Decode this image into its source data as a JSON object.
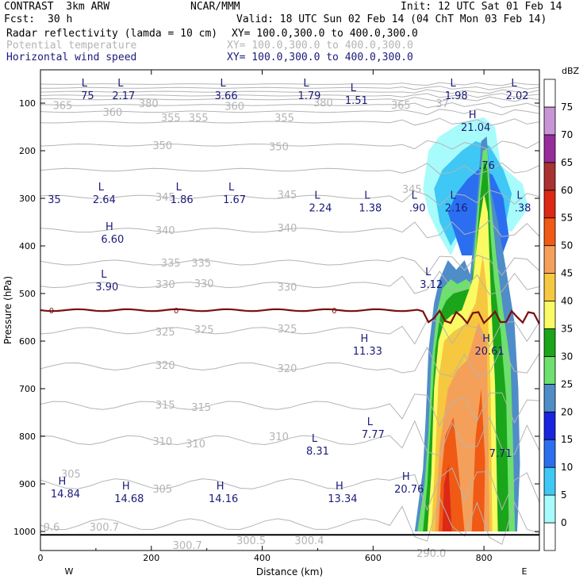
{
  "header": {
    "model": "CONTRAST  3km ARW",
    "org": "NCAR/MMM",
    "init": "Init: 12 UTC Sat 01 Feb 14",
    "fcst_label": "Fcst:",
    "fcst_value": "30 h",
    "valid": "Valid: 18 UTC Sun 02 Feb 14 (04 ChT Mon 03 Feb 14)",
    "fields": [
      {
        "name": "Radar reflectivity (lamda = 10 cm)",
        "xy": "XY= 100.0,300.0 to 400.0,300.0",
        "color": "#000000"
      },
      {
        "name": "Potential temperature",
        "xy": "XY= 100.0,300.0 to 400.0,300.0",
        "color": "#b4b4b4"
      },
      {
        "name": "Horizontal wind speed",
        "xy": "XY= 100.0,300.0 to 400.0,300.0",
        "color": "#1a1a7a"
      }
    ]
  },
  "chart_data": {
    "type": "cross-section",
    "xlabel": "Distance (km)",
    "ylabel": "Pressure (hPa)",
    "xlim": [
      0,
      900
    ],
    "ylim": [
      1040,
      30
    ],
    "x_ticks": [
      "0",
      "200",
      "400",
      "600",
      "800"
    ],
    "y_ticks": [
      "100",
      "200",
      "300",
      "400",
      "500",
      "600",
      "700",
      "800",
      "900",
      "1000"
    ],
    "west_label": "W",
    "east_label": "E",
    "colorbar": {
      "unit": "dBZ",
      "levels": [
        "0",
        "5",
        "10",
        "15",
        "20",
        "25",
        "30",
        "35",
        "40",
        "45",
        "50",
        "55",
        "60",
        "65",
        "70",
        "75"
      ],
      "colors": [
        "#ffffff",
        "#a8fbfb",
        "#3fc8f5",
        "#2b6ff0",
        "#1a23e0",
        "#4f8dc8",
        "#6de06d",
        "#1aa51a",
        "#fafa64",
        "#f5c83f",
        "#f5a05a",
        "#f05a14",
        "#dc2814",
        "#aa3232",
        "#962d9b",
        "#c896d7",
        "#ffffff"
      ]
    },
    "theta_labels": [
      {
        "value": "380",
        "x": 195,
        "p": 100
      },
      {
        "value": "380",
        "x": 510,
        "p": 98
      },
      {
        "value": "365",
        "x": 40,
        "p": 104
      },
      {
        "value": "360",
        "x": 130,
        "p": 118
      },
      {
        "value": "360",
        "x": 350,
        "p": 106
      },
      {
        "value": "365",
        "x": 650,
        "p": 103
      },
      {
        "value": "37",
        "x": 725,
        "p": 100
      },
      {
        "value": "355",
        "x": 235,
        "p": 130
      },
      {
        "value": "355",
        "x": 285,
        "p": 130
      },
      {
        "value": "355",
        "x": 440,
        "p": 130
      },
      {
        "value": "350",
        "x": 220,
        "p": 188
      },
      {
        "value": "350",
        "x": 430,
        "p": 191
      },
      {
        "value": "345",
        "x": 225,
        "p": 297
      },
      {
        "value": "345",
        "x": 445,
        "p": 292
      },
      {
        "value": "345",
        "x": 670,
        "p": 280
      },
      {
        "value": "340",
        "x": 225,
        "p": 367
      },
      {
        "value": "340",
        "x": 445,
        "p": 362
      },
      {
        "value": "335",
        "x": 235,
        "p": 435
      },
      {
        "value": "335",
        "x": 290,
        "p": 435
      },
      {
        "value": "330",
        "x": 225,
        "p": 480
      },
      {
        "value": "330",
        "x": 295,
        "p": 478
      },
      {
        "value": "330",
        "x": 445,
        "p": 486
      },
      {
        "value": "325",
        "x": 225,
        "p": 580
      },
      {
        "value": "325",
        "x": 295,
        "p": 575
      },
      {
        "value": "325",
        "x": 445,
        "p": 573
      },
      {
        "value": "320",
        "x": 225,
        "p": 650
      },
      {
        "value": "320",
        "x": 445,
        "p": 657
      },
      {
        "value": "315",
        "x": 225,
        "p": 733
      },
      {
        "value": "315",
        "x": 290,
        "p": 738
      },
      {
        "value": "310",
        "x": 220,
        "p": 810
      },
      {
        "value": "310",
        "x": 280,
        "p": 815
      },
      {
        "value": "310",
        "x": 430,
        "p": 800
      },
      {
        "value": "305",
        "x": 55,
        "p": 878
      },
      {
        "value": "305",
        "x": 220,
        "p": 910
      },
      {
        "value": "0.6",
        "x": 20,
        "p": 990
      },
      {
        "value": "300.7",
        "x": 115,
        "p": 990
      },
      {
        "value": "300.7",
        "x": 265,
        "p": 1028
      },
      {
        "value": "300.5",
        "x": 380,
        "p": 1018
      },
      {
        "value": "300.4",
        "x": 485,
        "p": 1018
      },
      {
        "value": "290.0",
        "x": 705,
        "p": 1045
      }
    ],
    "wind_labels": [
      {
        "mark": "L",
        "value": "75",
        "x": 85,
        "p": 78
      },
      {
        "mark": "L",
        "value": "2.17",
        "x": 150,
        "p": 78
      },
      {
        "mark": "L",
        "value": "3.66",
        "x": 335,
        "p": 78
      },
      {
        "mark": "L",
        "value": "1.79",
        "x": 485,
        "p": 78
      },
      {
        "mark": "L",
        "value": "1.51",
        "x": 570,
        "p": 88
      },
      {
        "mark": "L",
        "value": "1.98",
        "x": 750,
        "p": 78
      },
      {
        "mark": "L",
        "value": "2.02",
        "x": 860,
        "p": 78
      },
      {
        "mark": "H",
        "value": "21.04",
        "x": 785,
        "p": 145
      },
      {
        "mark": "",
        "value": ".76",
        "x": 805,
        "p": 225
      },
      {
        "mark": "",
        "value": "35",
        "x": 25,
        "p": 297
      },
      {
        "mark": "L",
        "value": "2.64",
        "x": 115,
        "p": 297
      },
      {
        "mark": "L",
        "value": "1.86",
        "x": 255,
        "p": 297
      },
      {
        "mark": "L",
        "value": "1.67",
        "x": 350,
        "p": 297
      },
      {
        "mark": "L",
        "value": "2.24",
        "x": 505,
        "p": 314
      },
      {
        "mark": "L",
        "value": "1.38",
        "x": 595,
        "p": 314
      },
      {
        "mark": "L",
        "value": ".90",
        "x": 680,
        "p": 314
      },
      {
        "mark": "L",
        "value": "2.16",
        "x": 750,
        "p": 314
      },
      {
        "mark": "L",
        "value": ".38",
        "x": 870,
        "p": 314
      },
      {
        "mark": "H",
        "value": "6.60",
        "x": 130,
        "p": 380
      },
      {
        "mark": "L",
        "value": "3.90",
        "x": 120,
        "p": 480
      },
      {
        "mark": "L",
        "value": "3.12",
        "x": 705,
        "p": 475
      },
      {
        "mark": "H",
        "value": "11.33",
        "x": 590,
        "p": 615
      },
      {
        "mark": "H",
        "value": "20.61",
        "x": 810,
        "p": 615
      },
      {
        "mark": "L",
        "value": "7.77",
        "x": 600,
        "p": 790
      },
      {
        "mark": "L",
        "value": "8.31",
        "x": 500,
        "p": 825
      },
      {
        "mark": "",
        "value": "7.71",
        "x": 830,
        "p": 830
      },
      {
        "mark": "H",
        "value": "14.84",
        "x": 45,
        "p": 915
      },
      {
        "mark": "H",
        "value": "14.68",
        "x": 160,
        "p": 925
      },
      {
        "mark": "H",
        "value": "14.16",
        "x": 330,
        "p": 925
      },
      {
        "mark": "H",
        "value": "13.34",
        "x": 545,
        "p": 925
      },
      {
        "mark": "H",
        "value": "20.76",
        "x": 665,
        "p": 905
      }
    ],
    "zero_contour_label": "0",
    "zero_contour_xs": [
      20,
      245,
      530
    ]
  }
}
